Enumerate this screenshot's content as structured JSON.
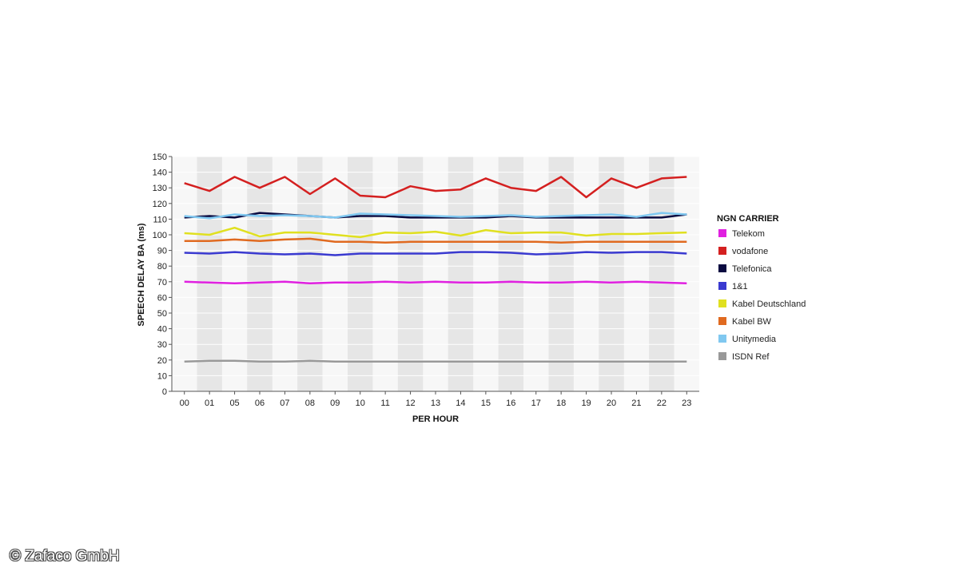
{
  "watermark": "© Zafaco GmbH",
  "chart_data": {
    "type": "line",
    "xlabel": "PER HOUR",
    "ylabel": "SPEECH DELAY BA (ms)",
    "ylim": [
      0,
      150
    ],
    "yticks": [
      0,
      10,
      20,
      30,
      40,
      50,
      60,
      70,
      80,
      90,
      100,
      110,
      120,
      130,
      140,
      150
    ],
    "categories": [
      "00",
      "01",
      "05",
      "06",
      "07",
      "08",
      "09",
      "10",
      "11",
      "12",
      "13",
      "14",
      "15",
      "16",
      "17",
      "18",
      "19",
      "20",
      "21",
      "22",
      "23"
    ],
    "grid": "horizontal lines with alternating vertical bands",
    "legend": {
      "title": "NGN CARRIER",
      "position": "right"
    },
    "series": [
      {
        "name": "Telekom",
        "color": "#e020e0",
        "values": [
          70,
          69.5,
          69,
          69.5,
          70,
          69,
          69.5,
          69.5,
          70,
          69.5,
          70,
          69.5,
          69.5,
          70,
          69.5,
          69.5,
          70,
          69.5,
          70,
          69.5,
          69
        ]
      },
      {
        "name": "vodafone",
        "color": "#d42020",
        "values": [
          133,
          128,
          137,
          130,
          137,
          126,
          136,
          125,
          124,
          131,
          128,
          129,
          136,
          130,
          128,
          137,
          124,
          136,
          130,
          136,
          137
        ]
      },
      {
        "name": "Telefonica",
        "color": "#0a0a40",
        "values": [
          111,
          112,
          111,
          114,
          113,
          112,
          111,
          112,
          112,
          111,
          111,
          111,
          111,
          112,
          111,
          111,
          111,
          111,
          111,
          111,
          113
        ]
      },
      {
        "name": "1&1",
        "color": "#3a3ad0",
        "values": [
          88.5,
          88,
          89,
          88,
          87.5,
          88,
          87,
          88,
          88,
          88,
          88,
          89,
          89,
          88.5,
          87.5,
          88,
          89,
          88.5,
          89,
          89,
          88
        ]
      },
      {
        "name": "Kabel Deutschland",
        "color": "#e0e020",
        "values": [
          101,
          100,
          104.5,
          99,
          101.5,
          101.5,
          100,
          98.5,
          101.5,
          101,
          102,
          99.5,
          103,
          101,
          101.5,
          101.5,
          99.5,
          100.5,
          100.5,
          101,
          101.5
        ]
      },
      {
        "name": "Kabel BW",
        "color": "#e06a20",
        "values": [
          96,
          96,
          97,
          96,
          97,
          97.5,
          95.5,
          95.5,
          95,
          95.5,
          95.5,
          95.5,
          95.5,
          95.5,
          95.5,
          95,
          95.5,
          95.5,
          95.5,
          95.5,
          95.5
        ]
      },
      {
        "name": "Unitymedia",
        "color": "#80c8f0",
        "values": [
          112,
          110.5,
          113,
          112,
          112.5,
          112,
          111,
          113.5,
          113,
          112.5,
          112,
          111.5,
          112,
          112.5,
          111.5,
          112,
          112.5,
          113,
          111.5,
          114,
          113
        ]
      },
      {
        "name": "ISDN Ref",
        "color": "#999999",
        "values": [
          19,
          19.5,
          19.5,
          19,
          19,
          19.5,
          19,
          19,
          19,
          19,
          19,
          19,
          19,
          19,
          19,
          19,
          19,
          19,
          19,
          19,
          19
        ]
      }
    ]
  }
}
